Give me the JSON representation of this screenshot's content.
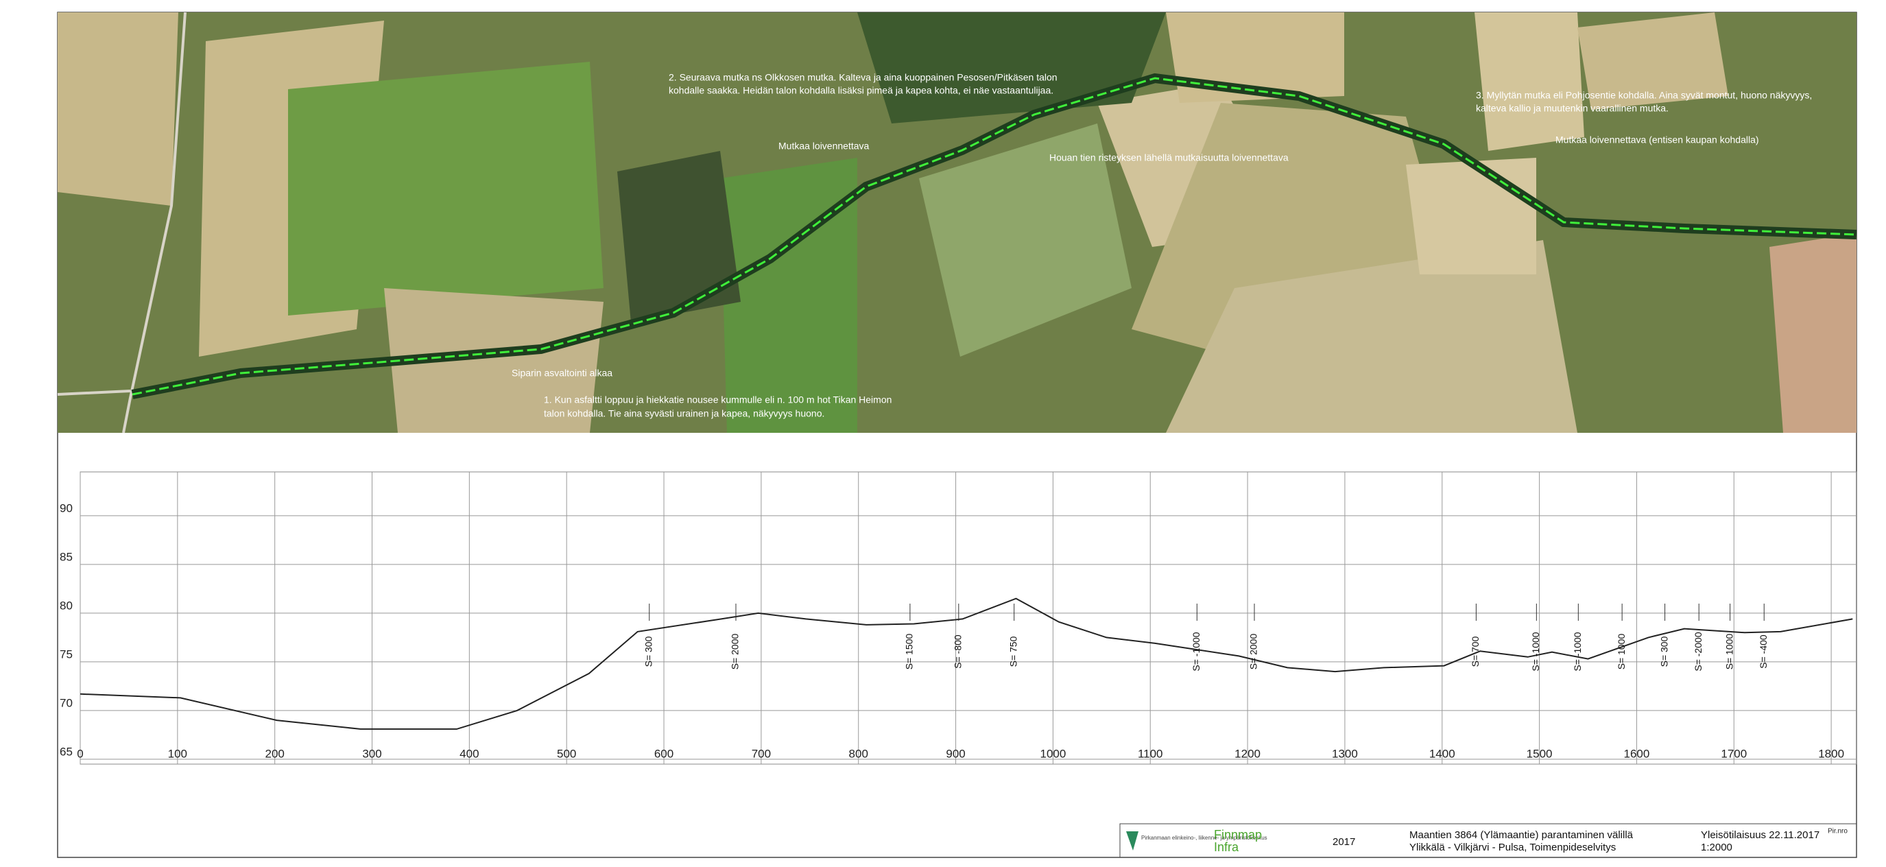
{
  "map": {
    "annotations": [
      "2. Seuraava mutka ns Olkkosen mutka. Kalteva ja aina kuoppainen Pesosen/Pitkäsen talon",
      "kohdalle saakka. Heidän talon kohdalla lisäksi pimeä ja kapea kohta, ei näe vastaantulijaa.",
      "Mutkaa loivennettava",
      "Houan tien risteyksen lähellä mutkaisuutta loivennettava",
      "3. Myllytän mutka eli Pohjosentie kohdalla. Aina syvät montut, huono näkyvyys,",
      "kalteva kallio ja muutenkin vaarallinen mutka.",
      "Mutkaa loivennettava (entisen kaupan kohdalla)",
      "Siparin asvaltointi alkaa",
      "1. Kun asfaltti loppuu ja hiekkatie nousee kummulle eli n. 100 m hot Tikan Heimon",
      "talon kohdalla. Tie aina syvästi urainen ja kapea, näkyvyys huono."
    ]
  },
  "chart_data": {
    "type": "line",
    "color": "#222222",
    "x": [
      0,
      103,
      202,
      288,
      387,
      449,
      523,
      573,
      659,
      697,
      746,
      808,
      857,
      907,
      962,
      1006,
      1055,
      1105,
      1191,
      1241,
      1290,
      1340,
      1402,
      1439,
      1488,
      1513,
      1550,
      1612,
      1649,
      1711,
      1748,
      1822
    ],
    "values": [
      71.7,
      71.3,
      69,
      68.1,
      68.1,
      70,
      73.8,
      78.1,
      79.4,
      80,
      79.4,
      78.8,
      78.9,
      79.4,
      81.5,
      79.1,
      77.5,
      76.9,
      75.6,
      74.4,
      74,
      74.4,
      74.6,
      76.1,
      75.5,
      76,
      75.3,
      77.5,
      78.4,
      78,
      78.1,
      79.4
    ],
    "xlim": [
      0,
      1826
    ],
    "ylim": [
      64.5,
      94.5
    ],
    "xticks": [
      0,
      100,
      200,
      300,
      400,
      500,
      600,
      700,
      800,
      900,
      1000,
      1100,
      1200,
      1300,
      1400,
      1500,
      1600,
      1700,
      1800
    ],
    "yticks": [
      65,
      70,
      75,
      80,
      85,
      90
    ],
    "grid": true,
    "vertical_curves": [
      {
        "label": "S= 300",
        "station": 585
      },
      {
        "label": "S= 2000",
        "station": 674
      },
      {
        "label": "S= 1500",
        "station": 853
      },
      {
        "label": "S= -800",
        "station": 903
      },
      {
        "label": "S= 750",
        "station": 960
      },
      {
        "label": "S= -1000",
        "station": 1148
      },
      {
        "label": "S= 2000",
        "station": 1207
      },
      {
        "label": "S= 700",
        "station": 1435
      },
      {
        "label": "S= -1000",
        "station": 1497
      },
      {
        "label": "S= -1000",
        "station": 1540
      },
      {
        "label": "S= 1000",
        "station": 1585
      },
      {
        "label": "S= 300",
        "station": 1629
      },
      {
        "label": "S= -2000",
        "station": 1664
      },
      {
        "label": "S= 1000",
        "station": 1696
      },
      {
        "label": "S= -400",
        "station": 1731
      }
    ]
  },
  "title_block": {
    "agency": "Pirkanmaan elinkeino-, liikenne- ja ympäristökeskus",
    "company_1": "Finnmap",
    "company_2": "Infra",
    "year": "2017",
    "project_1": "Maantien 3864 (Ylämaantie) parantaminen välillä",
    "project_2": "Ylikkälä - Vilkjärvi - Pulsa, Toimenpideselvitys",
    "event": "Yleisötilaisuus 22.11.2017",
    "scale": "1:2000",
    "plan_no": "Pir.nro"
  }
}
